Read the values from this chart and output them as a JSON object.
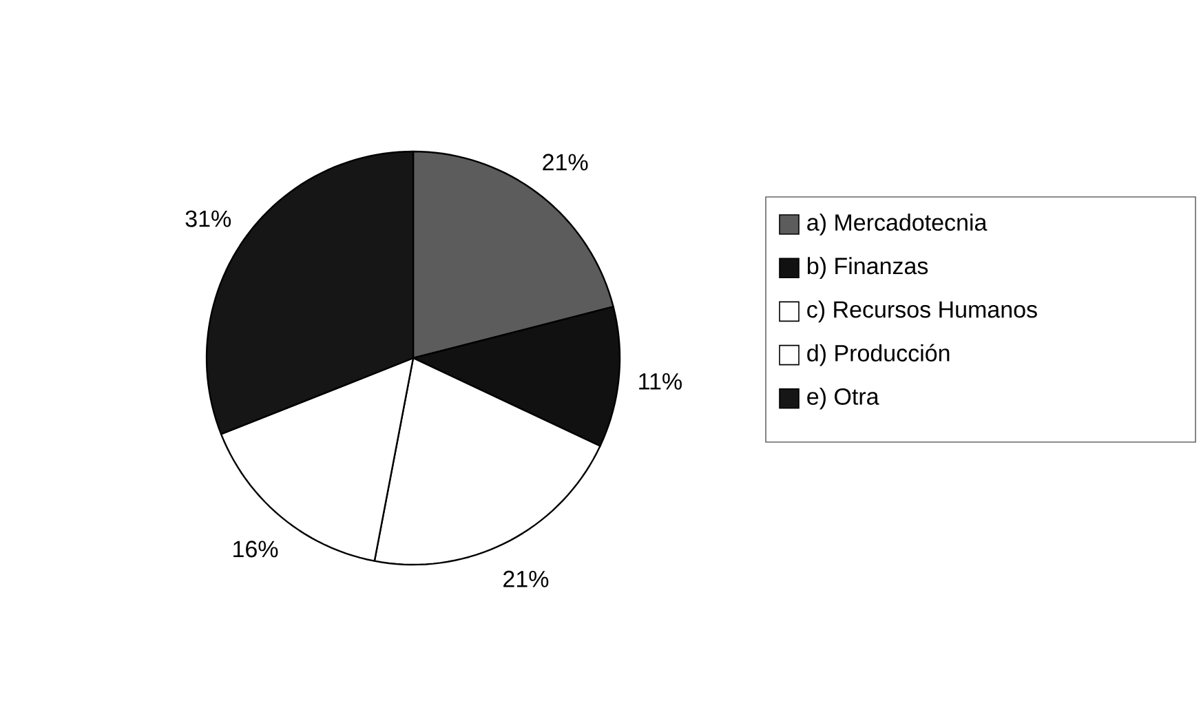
{
  "chart_data": {
    "type": "pie",
    "categories": [
      "a) Mercadotecnia",
      "b) Finanzas",
      "c) Recursos Humanos",
      "d) Producción",
      "e) Otra"
    ],
    "values": [
      21,
      11,
      21,
      16,
      31
    ],
    "value_labels": [
      "21%",
      "11%",
      "21%",
      "16%",
      "31%"
    ],
    "colors": [
      "#5c5c5c",
      "#111111",
      "#ffffff",
      "#ffffff",
      "#161616"
    ],
    "legend": "right"
  }
}
